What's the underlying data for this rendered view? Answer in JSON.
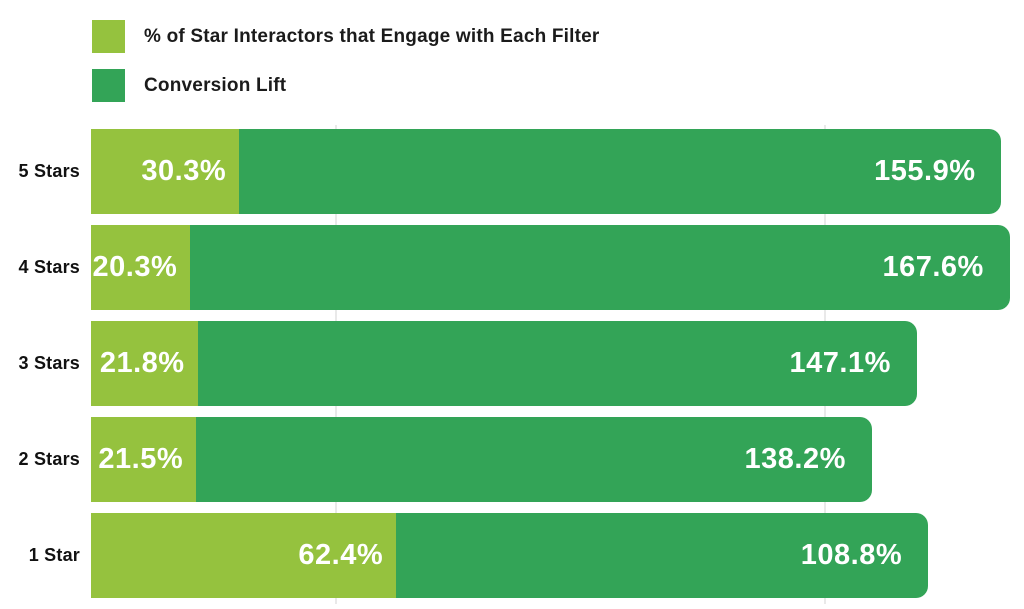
{
  "chart_data": {
    "type": "bar",
    "orientation": "horizontal",
    "stacked": true,
    "title": "",
    "categories": [
      "5 Stars",
      "4 Stars",
      "3 Stars",
      "2 Stars",
      "1 Star"
    ],
    "series": [
      {
        "name": "% of Star Interactors that Engage with Each Filter",
        "color": "#95c23e",
        "values": [
          30.3,
          20.3,
          21.8,
          21.5,
          62.4
        ]
      },
      {
        "name": "Conversion Lift",
        "color": "#33a457",
        "values": [
          155.9,
          167.6,
          147.1,
          138.2,
          108.8
        ]
      }
    ],
    "data_labels": {
      "engage": [
        "30.3%",
        "20.3%",
        "21.8%",
        "21.5%",
        "62.4%"
      ],
      "lift": [
        "155.9%",
        "167.6%",
        "147.1%",
        "138.2%",
        "108.8%"
      ]
    },
    "value_suffix": "%",
    "axis_max": 190.8,
    "gridline_values": [
      50,
      150
    ],
    "grid": "faint-vertical",
    "legend_position": "top-left",
    "label_text_color": "#ffffff",
    "background_color": "#ffffff"
  }
}
